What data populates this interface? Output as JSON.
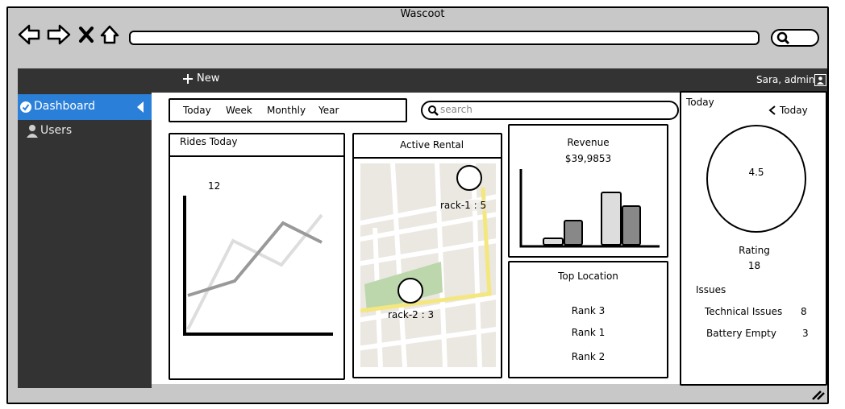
{
  "browser": {
    "title": "Wascoot",
    "address": "",
    "search": ""
  },
  "topbar": {
    "new_label": "New",
    "user_label": "Sara, admin"
  },
  "sidebar": {
    "items": [
      {
        "label": "Dashboard",
        "active": true
      },
      {
        "label": "Users",
        "active": false
      }
    ]
  },
  "filters": {
    "tabs": [
      "Today",
      "Week",
      "Monthly",
      "Year"
    ]
  },
  "search": {
    "placeholder": "search"
  },
  "rides_today": {
    "title": "Rides Today",
    "value_label": "12"
  },
  "active_rental": {
    "title": "Active Rental",
    "racks": [
      {
        "label": "rack-1 : 5"
      },
      {
        "label": "rack-2 : 3"
      }
    ]
  },
  "revenue": {
    "title": "Revenue",
    "amount": "$39,9853"
  },
  "top_location": {
    "title": "Top Location",
    "ranks": [
      "Rank 3",
      "Rank 1",
      "Rank 2"
    ]
  },
  "right_panel": {
    "period": "Today",
    "nav_label": "Today",
    "rating_value": "4.5",
    "rating_label": "Rating",
    "rating_count": "18",
    "issues_title": "Issues",
    "issues": [
      {
        "name": "Technical Issues",
        "count": "8"
      },
      {
        "name": "Battery Empty",
        "count": "3"
      }
    ]
  },
  "colors": {
    "sidebar_bg": "#333333",
    "active_item": "#2a7fd8",
    "browser_chrome": "#c8c8c8"
  }
}
